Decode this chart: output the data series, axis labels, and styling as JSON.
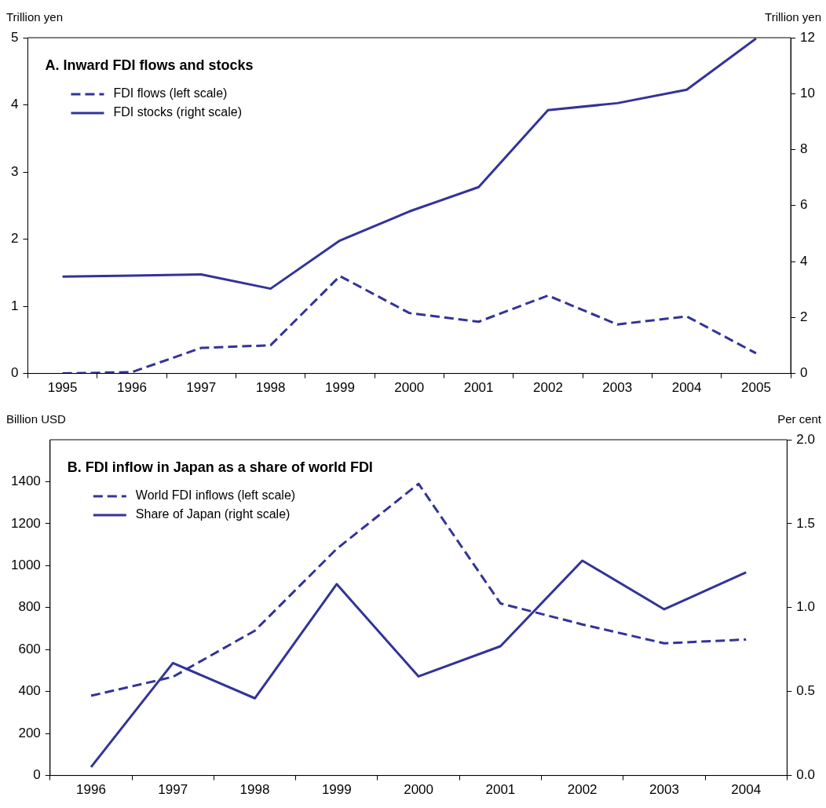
{
  "chart_data": [
    {
      "type": "line",
      "title": "A. Inward FDI flows and stocks",
      "ylabel": "Trillion yen",
      "y2label": "Trillion yen",
      "categories": [
        "1995",
        "1996",
        "1997",
        "1998",
        "1999",
        "2000",
        "2001",
        "2002",
        "2003",
        "2004",
        "2005"
      ],
      "series": [
        {
          "name": "FDI flows (left scale)",
          "color": "#333399",
          "line_style": "dashed",
          "values": [
            0,
            0.02,
            0.38,
            0.42,
            1.45,
            0.9,
            0.77,
            1.16,
            0.73,
            0.85,
            0.3
          ]
        },
        {
          "name": "FDI stocks (right scale)",
          "color": "#333399",
          "line_style": "solid",
          "axis": "y2",
          "values": [
            3.46,
            3.5,
            3.54,
            3.03,
            4.75,
            5.79,
            6.66,
            9.41,
            9.66,
            10.14,
            11.97
          ]
        }
      ],
      "ylim": [
        0,
        5
      ],
      "yticks": [
        0,
        1,
        2,
        3,
        4,
        5
      ],
      "y2lim": [
        0,
        12
      ],
      "y2ticks": [
        0,
        2,
        4,
        6,
        8,
        10,
        12
      ],
      "grid": false,
      "legend": "top left",
      "marker": "none"
    },
    {
      "type": "line",
      "title": "B. FDI inflow in Japan as a share of world FDI",
      "ylabel": "Billion USD",
      "y2label": "Per cent",
      "categories": [
        "1996",
        "1997",
        "1998",
        "1999",
        "2000",
        "2001",
        "2002",
        "2003",
        "2004"
      ],
      "series": [
        {
          "name": "World FDI inflows (left scale)",
          "color": "#333399",
          "line_style": "dashed",
          "values": [
            380,
            470,
            690,
            1080,
            1390,
            820,
            720,
            630,
            648
          ]
        },
        {
          "name": "Share of Japan (right scale)",
          "color": "#333399",
          "line_style": "solid",
          "axis": "y2",
          "values": [
            0.05,
            0.67,
            0.46,
            1.14,
            0.59,
            0.77,
            1.28,
            0.99,
            1.21
          ]
        }
      ],
      "ylim": [
        0,
        1600
      ],
      "yticks": [
        0,
        200,
        400,
        600,
        800,
        1000,
        1200,
        1400
      ],
      "y2lim": [
        0,
        2
      ],
      "y2ticks": [
        {
          "value": 0,
          "label": "0.0"
        },
        {
          "value": 0.5,
          "label": "0.5"
        },
        {
          "value": 1,
          "label": "1.0"
        },
        {
          "value": 1.5,
          "label": "1.5"
        },
        {
          "value": 2,
          "label": "2.0"
        }
      ],
      "grid": false,
      "legend": "top left",
      "marker": "none"
    }
  ]
}
